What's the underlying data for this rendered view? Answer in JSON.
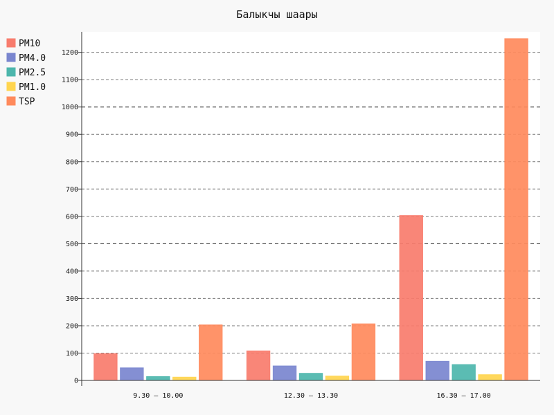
{
  "chart_data": {
    "type": "bar",
    "title": "Балыкчы шаары",
    "xlabel": "",
    "ylabel": "",
    "categories": [
      "9.30 – 10.00",
      "12.30 – 13.30",
      "16.30 – 17.00"
    ],
    "ylim": [
      0,
      1275
    ],
    "yticks": [
      0,
      100,
      200,
      300,
      400,
      500,
      600,
      700,
      800,
      900,
      1000,
      1100,
      1200
    ],
    "major_ticks": [
      500,
      1000
    ],
    "grid": true,
    "legend_position": "top-left",
    "series": [
      {
        "name": "PM10",
        "color": "#F87C6D",
        "values": [
          98,
          108,
          603
        ]
      },
      {
        "name": "PM4.0",
        "color": "#7A86CF",
        "values": [
          46,
          53,
          70
        ]
      },
      {
        "name": "PM2.5",
        "color": "#4DB6AC",
        "values": [
          14,
          26,
          58
        ]
      },
      {
        "name": "PM1.0",
        "color": "#FFD54F",
        "values": [
          12,
          16,
          21
        ]
      },
      {
        "name": "TSP",
        "color": "#FF8A5C",
        "values": [
          203,
          207,
          1250
        ]
      }
    ]
  }
}
